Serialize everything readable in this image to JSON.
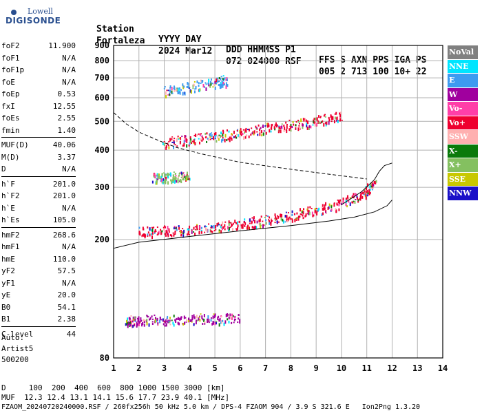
{
  "logo": {
    "top": "Lowell",
    "main": "DIGISONDE"
  },
  "header": {
    "row1": [
      "Station",
      "YYYY DAY",
      "DDD HHMMSS P1",
      "FFS S AXN PPS IGA PS"
    ],
    "row2": [
      "Fortaleza",
      "2024 Mar12",
      "072 024000 RSF",
      "005 2 713 100 10+ 22"
    ]
  },
  "params": [
    {
      "label": "foF2",
      "value": "11.900"
    },
    {
      "label": "foF1",
      "value": "N/A"
    },
    {
      "label": "foF1p",
      "value": "N/A"
    },
    {
      "label": "foE",
      "value": "N/A"
    },
    {
      "label": "foEp",
      "value": "0.53"
    },
    {
      "label": "fxI",
      "value": "12.55"
    },
    {
      "label": "foEs",
      "value": "2.55"
    },
    {
      "label": "fmin",
      "value": "1.40"
    },
    {
      "label": "MUF(D)",
      "value": "40.06"
    },
    {
      "label": "M(D)",
      "value": "3.37"
    },
    {
      "label": "D",
      "value": "N/A"
    },
    {
      "label": "h`F",
      "value": "201.0"
    },
    {
      "label": "h`F2",
      "value": "201.0"
    },
    {
      "label": "h`E",
      "value": "N/A"
    },
    {
      "label": "h`Es",
      "value": "105.0"
    },
    {
      "label": "hmF2",
      "value": "268.6"
    },
    {
      "label": "hmF1",
      "value": "N/A"
    },
    {
      "label": "hmE",
      "value": "110.0"
    },
    {
      "label": "yF2",
      "value": "57.5"
    },
    {
      "label": "yF1",
      "value": "N/A"
    },
    {
      "label": "yE",
      "value": "20.0"
    },
    {
      "label": "B0",
      "value": "54.1"
    },
    {
      "label": "B1",
      "value": "2.38"
    },
    {
      "label": "C-level",
      "value": "44"
    }
  ],
  "auto": {
    "line1": "Auto:",
    "line2": "Artist5",
    "line3": "500200"
  },
  "legend": [
    {
      "label": "NoVal",
      "color": "#808080"
    },
    {
      "label": "NNE",
      "color": "#00e5ff"
    },
    {
      "label": "E",
      "color": "#3d9bf0"
    },
    {
      "label": "W",
      "color": "#a0009e"
    },
    {
      "label": "Vo-",
      "color": "#ff3fa8"
    },
    {
      "label": "Vo+",
      "color": "#ee0030"
    },
    {
      "label": "SSW",
      "color": "#ffb0b0"
    },
    {
      "label": "X-",
      "color": "#0a7a0a"
    },
    {
      "label": "X+",
      "color": "#84c060"
    },
    {
      "label": "SSE",
      "color": "#c8c800"
    },
    {
      "label": "NNW",
      "color": "#1a10c8"
    }
  ],
  "footer": {
    "d_row": "D     100  200  400  600  800 1000 1500 3000 [km]",
    "muf_row": "MUF  12.3 12.4 13.1 14.1 15.6 17.7 23.9 40.1 [MHz]",
    "file_row": "FZAOM_20240720240000.RSF / 260fx256h 50 kHz 5.0 km / DPS-4 FZAOM 904 / 3.9 S 321.6 E   Ion2Png 1.3.20"
  },
  "chart_data": {
    "type": "scatter",
    "title": "",
    "xlabel": "",
    "ylabel": "",
    "xlim": [
      1,
      14
    ],
    "ylim": [
      80,
      900
    ],
    "x_ticks": [
      1,
      2,
      3,
      4,
      5,
      6,
      7,
      8,
      9,
      10,
      11,
      12,
      13,
      14
    ],
    "y_ticks": [
      80,
      200,
      300,
      400,
      500,
      600,
      700,
      800,
      900
    ],
    "y_scale": "log",
    "grid": true,
    "traces": [
      {
        "name": "F-layer O trace",
        "x": [
          2.0,
          3.0,
          4.0,
          5.0,
          6.0,
          7.0,
          8.0,
          9.0,
          10.0,
          10.8,
          11.3
        ],
        "y": [
          210,
          212,
          214,
          218,
          224,
          230,
          238,
          248,
          262,
          282,
          305
        ],
        "color": "#ee0030"
      },
      {
        "name": "F-layer 2nd hop",
        "x": [
          3.0,
          4.0,
          5.0,
          6.0,
          7.0,
          8.0,
          9.0,
          10.0
        ],
        "y": [
          420,
          428,
          440,
          452,
          468,
          480,
          495,
          515
        ],
        "color": "#ee0030"
      },
      {
        "name": "F-layer 3rd hop",
        "x": [
          3.0,
          4.0,
          5.0,
          5.5
        ],
        "y": [
          625,
          645,
          668,
          680
        ],
        "color": "#3d9bf0"
      },
      {
        "name": "Es trace",
        "x": [
          1.5,
          2.0,
          3.0,
          4.0,
          5.0,
          6.0
        ],
        "y": [
          105,
          106,
          106,
          107,
          107,
          108
        ],
        "color": "#a0009e"
      },
      {
        "name": "cluster 320km",
        "x": [
          2.6,
          3.0,
          3.5,
          4.0
        ],
        "y": [
          318,
          320,
          322,
          325
        ],
        "color": "#84c060"
      }
    ],
    "profile_solid": {
      "x": [
        1.0,
        2.0,
        4.0,
        6.0,
        8.0,
        9.5,
        10.5,
        11.3,
        11.8,
        12.0
      ],
      "y": [
        187,
        196,
        205,
        214,
        223,
        231,
        238,
        248,
        260,
        272
      ]
    },
    "profile_upper": {
      "x": [
        10.0,
        10.8,
        11.3,
        11.5,
        11.7,
        12.0
      ],
      "y": [
        262,
        290,
        318,
        340,
        355,
        362
      ]
    },
    "profile_dashed": {
      "x": [
        1.0,
        1.5,
        2.0,
        2.8,
        3.5,
        4.5,
        6.0,
        8.0,
        9.5,
        11.0
      ],
      "y": [
        535,
        490,
        460,
        430,
        408,
        388,
        364,
        345,
        332,
        320
      ]
    }
  }
}
